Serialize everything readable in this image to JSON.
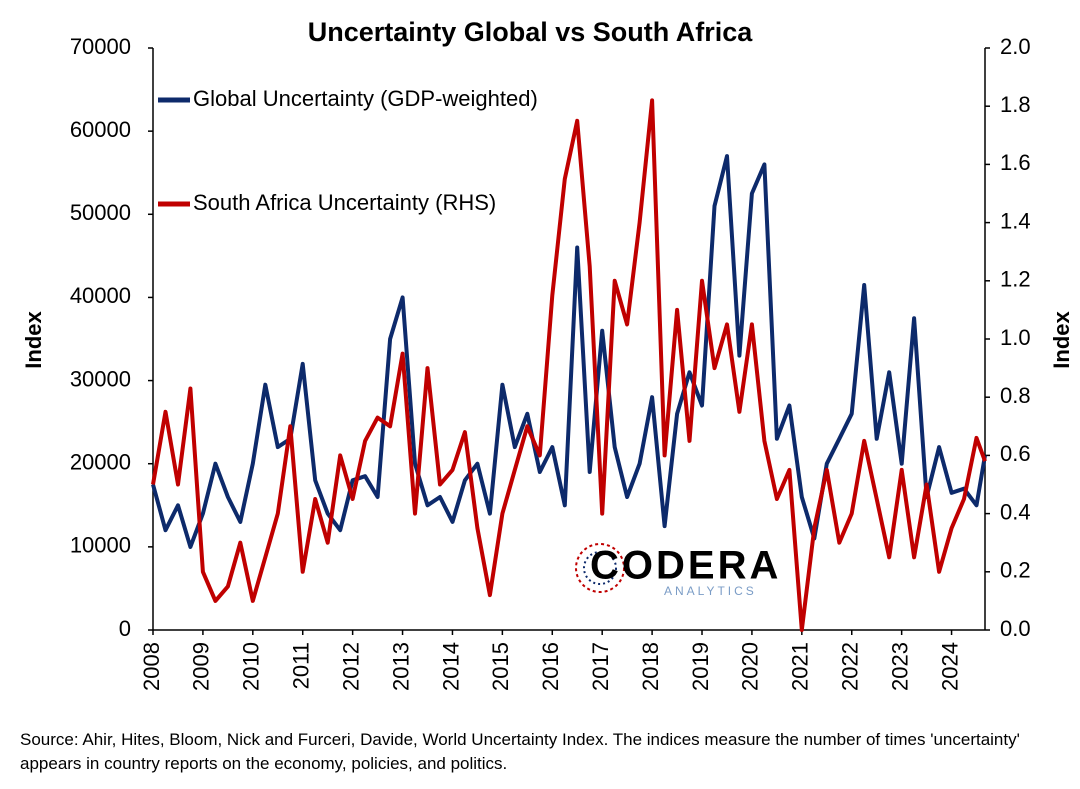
{
  "chart_data": {
    "type": "line",
    "title": "Uncertainty Global vs South Africa",
    "y_label": "Index",
    "y2_label": "Index",
    "source": "Source: Ahir, Hites, Bloom, Nick and Furceri, Davide, World Uncertainty Index. The indices measure the number of times 'uncertainty' appears in country reports on the economy, policies, and politics.",
    "logo": {
      "name": "CODERA",
      "tagline": "ANALYTICS"
    },
    "x": [
      2008,
      2008.25,
      2008.5,
      2008.75,
      2009,
      2009.25,
      2009.5,
      2009.75,
      2010,
      2010.25,
      2010.5,
      2010.75,
      2011,
      2011.25,
      2011.5,
      2011.75,
      2012,
      2012.25,
      2012.5,
      2012.75,
      2013,
      2013.25,
      2013.5,
      2013.75,
      2014,
      2014.25,
      2014.5,
      2014.75,
      2015,
      2015.25,
      2015.5,
      2015.75,
      2016,
      2016.25,
      2016.5,
      2016.75,
      2017,
      2017.25,
      2017.5,
      2017.75,
      2018,
      2018.25,
      2018.5,
      2018.75,
      2019,
      2019.25,
      2019.5,
      2019.75,
      2020,
      2020.25,
      2020.5,
      2020.75,
      2021,
      2021.25,
      2021.5,
      2021.75,
      2022,
      2022.25,
      2022.5,
      2022.75,
      2023,
      2023.25,
      2023.5,
      2023.75,
      2024,
      2024.25,
      2024.5,
      2024.67
    ],
    "xlim": [
      2008,
      2024.67
    ],
    "xticks": [
      2008,
      2009,
      2010,
      2011,
      2012,
      2013,
      2014,
      2015,
      2016,
      2017,
      2018,
      2019,
      2020,
      2021,
      2022,
      2023,
      2024
    ],
    "ylim": [
      0,
      70000
    ],
    "yticks": [
      0,
      10000,
      20000,
      30000,
      40000,
      50000,
      60000,
      70000
    ],
    "y2lim": [
      0,
      2
    ],
    "y2ticks": [
      {
        "value": 0,
        "label": "0.0"
      },
      0.2,
      0.4,
      0.6,
      0.8,
      {
        "value": 1,
        "label": "1.0"
      },
      1.2,
      1.4,
      1.6,
      1.8,
      {
        "value": 2,
        "label": "2.0"
      }
    ],
    "grid": false,
    "legend": "top-left",
    "series": [
      {
        "name": "Global Uncertainty (GDP-weighted)",
        "color": "#0d2a6b",
        "axis": "y",
        "values": [
          17500,
          12000,
          15000,
          10000,
          14000,
          20000,
          16000,
          13000,
          20000,
          29500,
          22000,
          23000,
          32000,
          18000,
          14000,
          12000,
          18000,
          18500,
          16000,
          35000,
          40000,
          20000,
          15000,
          16000,
          13000,
          18000,
          20000,
          14000,
          29500,
          22000,
          26000,
          19000,
          22000,
          15000,
          46000,
          19000,
          36000,
          22000,
          16000,
          20000,
          28000,
          12500,
          26000,
          31000,
          27000,
          51000,
          57000,
          33000,
          52500,
          56000,
          23000,
          27000,
          16000,
          11000,
          20000,
          23000,
          26000,
          41500,
          23000,
          31000,
          20000,
          37500,
          16000,
          22000,
          16500,
          17000,
          15000,
          21000
        ]
      },
      {
        "name": "South Africa Uncertainty (RHS)",
        "color": "#c00000",
        "axis": "y2",
        "values": [
          0.5,
          0.75,
          0.5,
          0.83,
          0.2,
          0.1,
          0.15,
          0.3,
          0.1,
          0.25,
          0.4,
          0.7,
          0.2,
          0.45,
          0.3,
          0.6,
          0.45,
          0.65,
          0.73,
          0.7,
          0.95,
          0.4,
          0.9,
          0.5,
          0.55,
          0.68,
          0.35,
          0.12,
          0.4,
          0.55,
          0.7,
          0.6,
          1.15,
          1.55,
          1.75,
          1.25,
          0.4,
          1.2,
          1.05,
          1.4,
          1.82,
          0.6,
          1.1,
          0.65,
          1.2,
          0.9,
          1.05,
          0.75,
          1.05,
          0.65,
          0.45,
          0.55,
          0,
          0.35,
          0.55,
          0.3,
          0.4,
          0.65,
          0.45,
          0.25,
          0.55,
          0.25,
          0.5,
          0.2,
          0.35,
          0.45,
          0.66,
          0.58
        ]
      }
    ]
  }
}
